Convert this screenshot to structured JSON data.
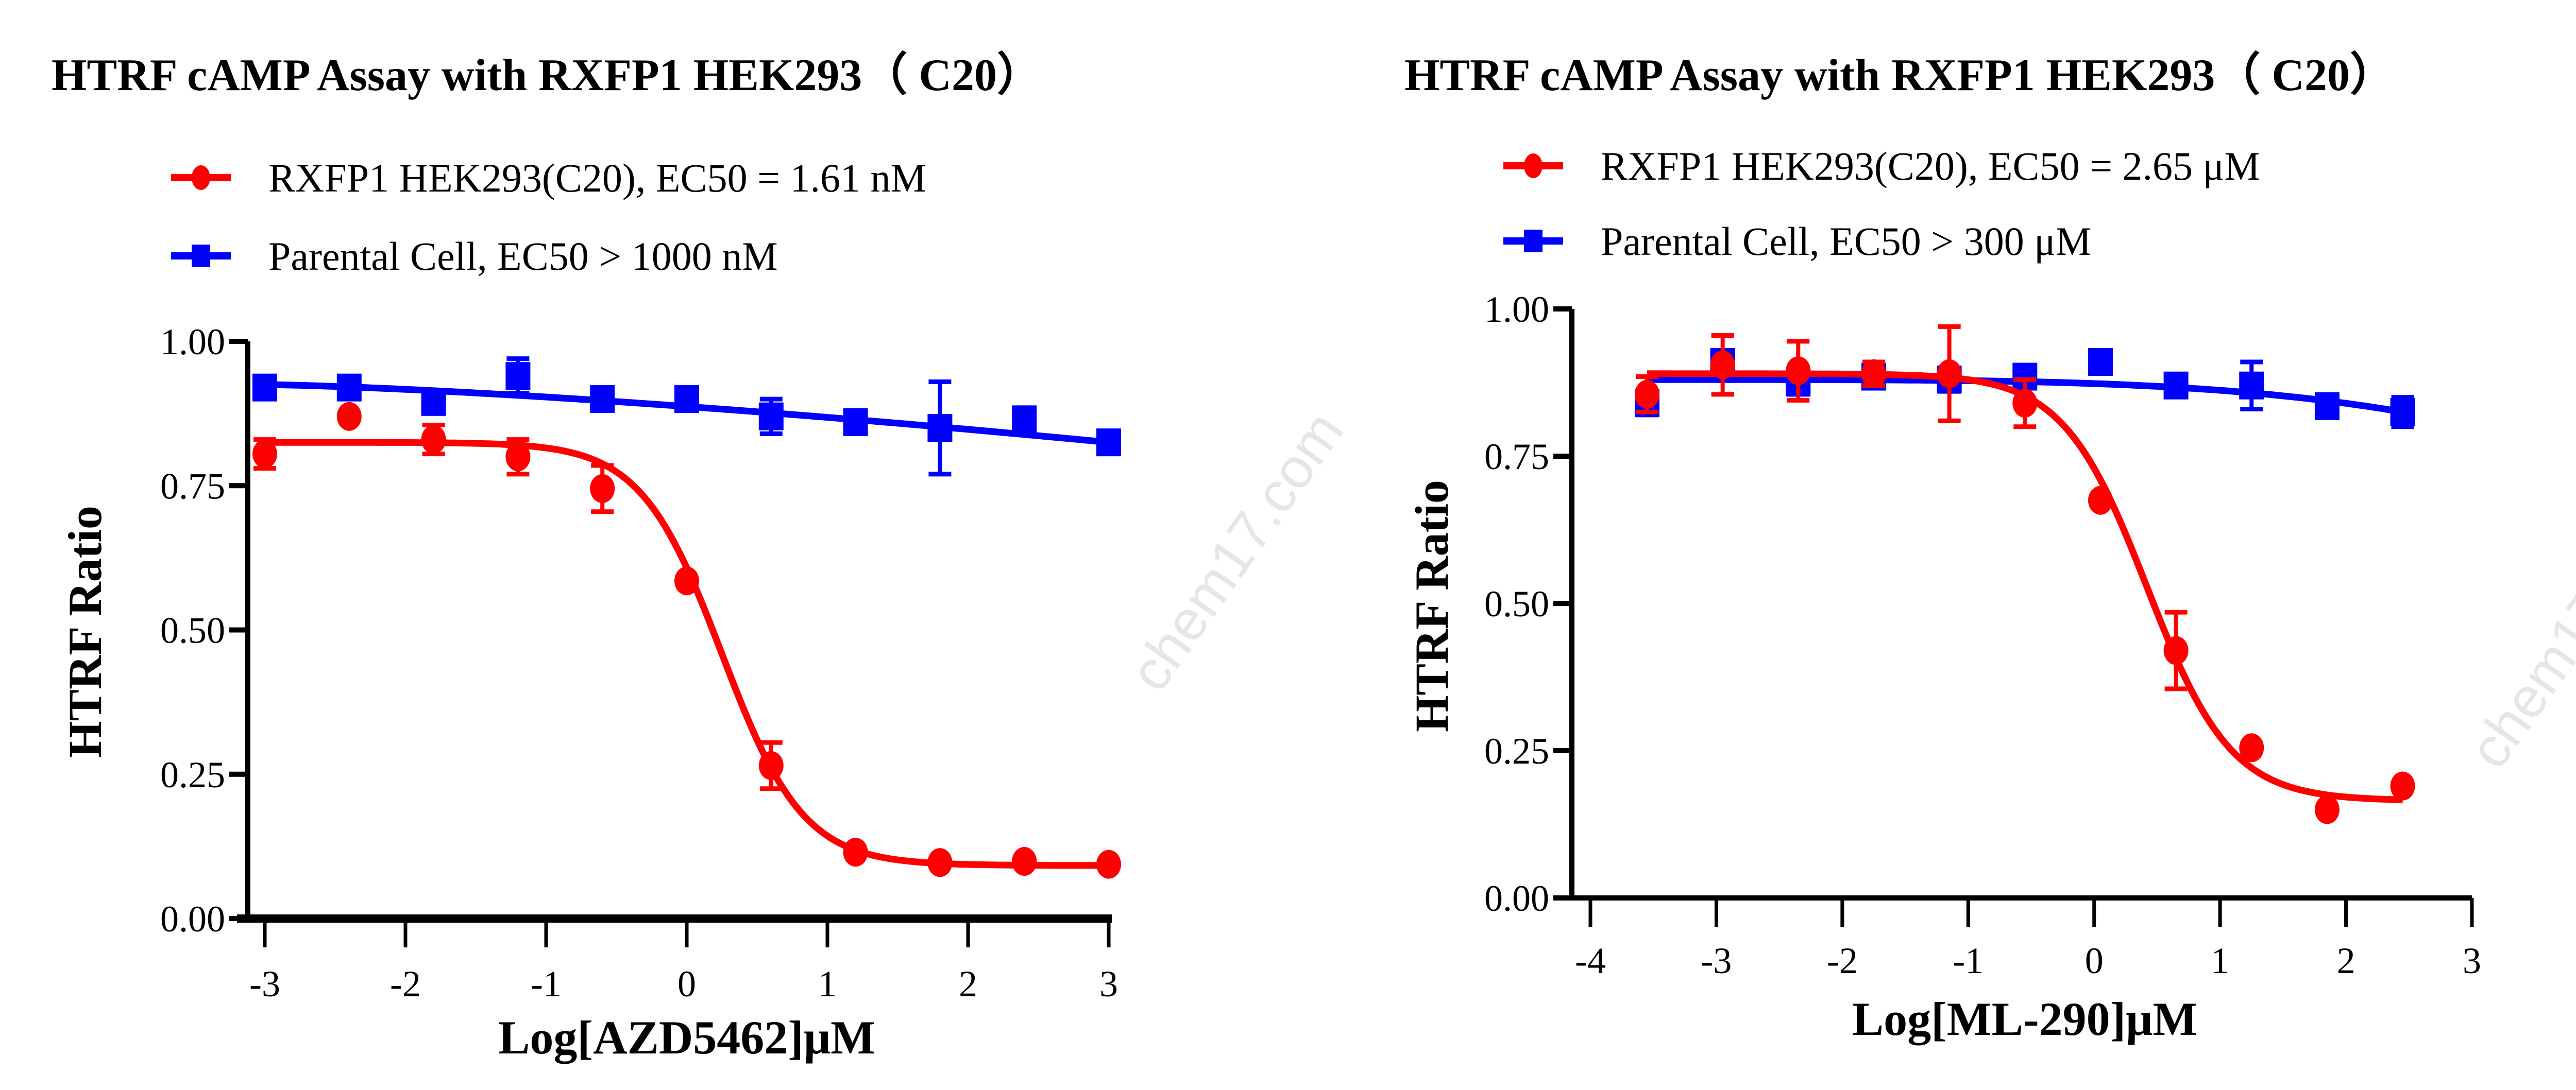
{
  "watermark": "chem17.com",
  "colors": {
    "red": "#ff0000",
    "blue": "#0000ff",
    "axis": "#000000"
  },
  "chart_data": [
    {
      "type": "scatter",
      "title": "HTRF cAMP Assay with RXFP1 HEK293（ C20）",
      "xlabel": "Log[AZD5462]μM",
      "ylabel": "HTRF Ratio",
      "xlim": [
        -3,
        3
      ],
      "ylim": [
        0,
        1
      ],
      "xticks": [
        "-3",
        "-2",
        "-1",
        "0",
        "1",
        "2",
        "3"
      ],
      "yticks": [
        "0.00",
        "0.25",
        "0.50",
        "0.75",
        "1.00"
      ],
      "legend_placement": "top-left",
      "grid": false,
      "series": [
        {
          "name": "RXFP1 HEK293(C20), EC50 = 1.61 nM",
          "color": "#ff0000",
          "marker": "circle",
          "x": [
            -3,
            -2.4,
            -1.8,
            -1.2,
            -0.6,
            0,
            0.6,
            1.2,
            1.8,
            2.4,
            3
          ],
          "y": [
            0.805,
            0.87,
            0.83,
            0.8,
            0.745,
            0.585,
            0.265,
            0.115,
            0.097,
            0.099,
            0.094
          ],
          "error": [
            0.025,
            0,
            0.025,
            0.03,
            0.04,
            0,
            0.04,
            0,
            0,
            0,
            0
          ]
        },
        {
          "name": "Parental Cell, EC50 > 1000 nM",
          "color": "#0000ff",
          "marker": "square",
          "x": [
            -3,
            -2.4,
            -1.8,
            -1.2,
            -0.6,
            0,
            0.6,
            1.2,
            1.8,
            2.4,
            3
          ],
          "y": [
            0.92,
            0.92,
            0.895,
            0.94,
            0.9,
            0.9,
            0.87,
            0.86,
            0.85,
            0.865,
            0.825
          ],
          "error": [
            0,
            0.01,
            0.02,
            0.03,
            0.015,
            0.01,
            0.03,
            0,
            0.08,
            0,
            0
          ]
        }
      ]
    },
    {
      "type": "scatter",
      "title": "HTRF cAMP Assay with RXFP1 HEK293（ C20）",
      "xlabel": "Log[ML-290]μM",
      "ylabel": "HTRF Ratio",
      "xlim": [
        -4,
        3
      ],
      "ylim": [
        0,
        1
      ],
      "xticks": [
        "-4",
        "-3",
        "-2",
        "-1",
        "0",
        "1",
        "2",
        "3"
      ],
      "yticks": [
        "0.00",
        "0.25",
        "0.50",
        "0.75",
        "1.00"
      ],
      "legend_placement": "top-left",
      "grid": false,
      "series": [
        {
          "name": "RXFP1 HEK293(C20), EC50 = 2.65 μM",
          "color": "#ff0000",
          "marker": "circle",
          "x": [
            -3.55,
            -2.95,
            -2.35,
            -1.75,
            -1.15,
            -0.55,
            0.05,
            0.65,
            1.25,
            1.85,
            2.45
          ],
          "y": [
            0.855,
            0.905,
            0.895,
            0.89,
            0.89,
            0.84,
            0.675,
            0.42,
            0.255,
            0.15,
            0.19
          ],
          "error": [
            0.03,
            0.05,
            0.05,
            0.02,
            0.08,
            0.04,
            0,
            0.065,
            0,
            0,
            0
          ]
        },
        {
          "name": "Parental Cell, EC50 > 300 μM",
          "color": "#0000ff",
          "marker": "square",
          "x": [
            -3.55,
            -2.95,
            -2.35,
            -1.75,
            -1.15,
            -0.55,
            0.05,
            0.65,
            1.25,
            1.85,
            2.45
          ],
          "y": [
            0.84,
            0.91,
            0.875,
            0.885,
            0.88,
            0.885,
            0.91,
            0.87,
            0.87,
            0.835,
            0.825
          ],
          "error": [
            0.02,
            0.01,
            0.02,
            0.01,
            0.02,
            0,
            0,
            0,
            0.04,
            0,
            0.025
          ]
        }
      ]
    }
  ]
}
